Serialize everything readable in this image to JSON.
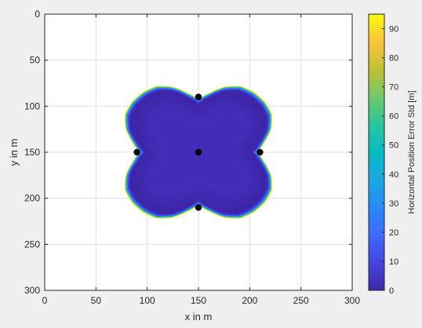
{
  "chart_data": {
    "type": "heatmap",
    "title": "",
    "xlabel": "x in m",
    "ylabel": "y in m",
    "xlim": [
      0,
      300
    ],
    "ylim": [
      0,
      300
    ],
    "y_axis_reversed": true,
    "xticks": [
      0,
      50,
      100,
      150,
      200,
      250,
      300
    ],
    "yticks": [
      0,
      50,
      100,
      150,
      200,
      250,
      300
    ],
    "grid": true,
    "colorbar": {
      "label": "Horizontal Position Error Std [m]",
      "range": [
        0,
        95
      ],
      "ticks": [
        0,
        10,
        20,
        30,
        40,
        50,
        60,
        70,
        80,
        90
      ],
      "colormap": "parula"
    },
    "anchors": [
      {
        "x": 150,
        "y": 90
      },
      {
        "x": 90,
        "y": 150
      },
      {
        "x": 150,
        "y": 150
      },
      {
        "x": 210,
        "y": 150
      },
      {
        "x": 150,
        "y": 210
      }
    ],
    "coverage_region": {
      "center": [
        150,
        150
      ],
      "interior_value": 3,
      "edge_value": 95,
      "boundary_samples": [
        {
          "angle_deg": 0,
          "radius": 58
        },
        {
          "angle_deg": 10,
          "radius": 66
        },
        {
          "angle_deg": 20,
          "radius": 76
        },
        {
          "angle_deg": 30,
          "radius": 83
        },
        {
          "angle_deg": 40,
          "radius": 85
        },
        {
          "angle_deg": 50,
          "radius": 85
        },
        {
          "angle_deg": 60,
          "radius": 83
        },
        {
          "angle_deg": 70,
          "radius": 76
        },
        {
          "angle_deg": 80,
          "radius": 66
        },
        {
          "angle_deg": 90,
          "radius": 58
        }
      ]
    },
    "colors": {
      "background": "#ffffff",
      "figure": "#f0f0f0",
      "interior": "#3e26a8",
      "edge": "#f9fb0e",
      "anchor": "#000000"
    }
  }
}
